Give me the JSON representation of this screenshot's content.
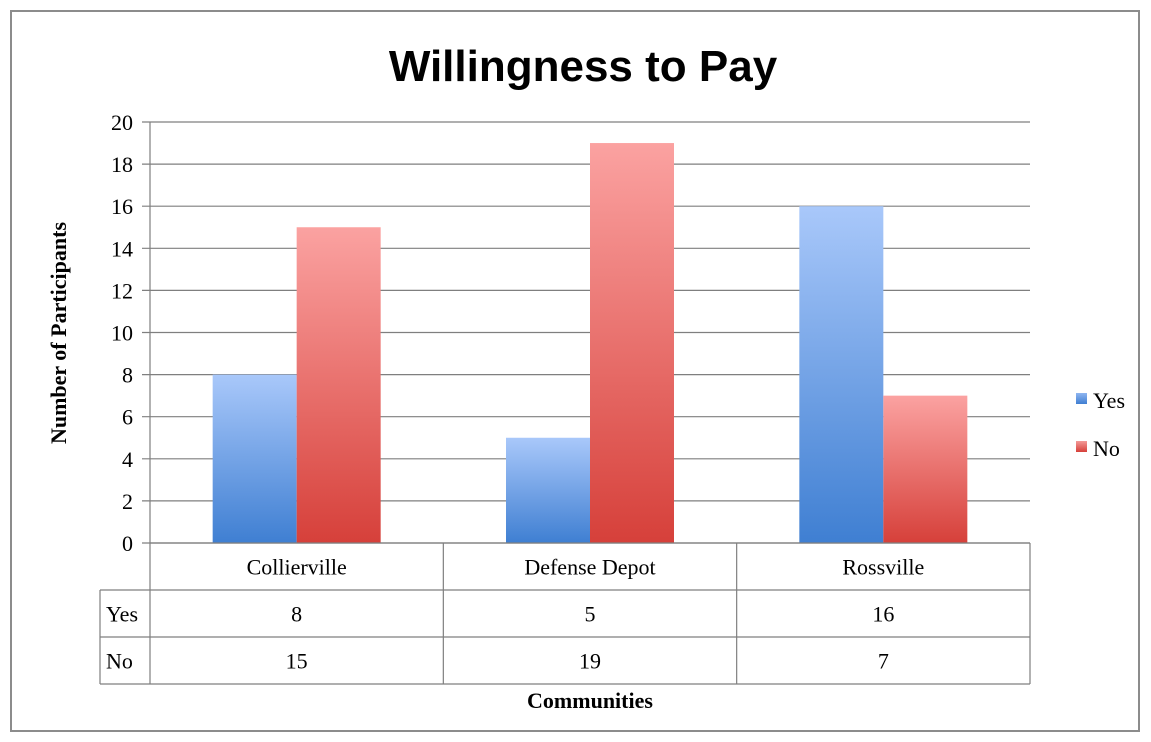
{
  "chart_data": {
    "type": "bar",
    "title": "Willingness to Pay",
    "xlabel": "Communities",
    "ylabel": "Number of Participants",
    "categories": [
      "Collierville",
      "Defense Depot",
      "Rossville"
    ],
    "series": [
      {
        "name": "Yes",
        "values": [
          8,
          5,
          16
        ],
        "color": "#5b8fd6"
      },
      {
        "name": "No",
        "values": [
          15,
          19,
          7
        ],
        "color": "#e0605c"
      }
    ],
    "ylim": [
      0,
      20
    ],
    "yticks": [
      0,
      2,
      4,
      6,
      8,
      10,
      12,
      14,
      16,
      18,
      20
    ],
    "grid": true,
    "legend": "right",
    "data_table": true
  }
}
